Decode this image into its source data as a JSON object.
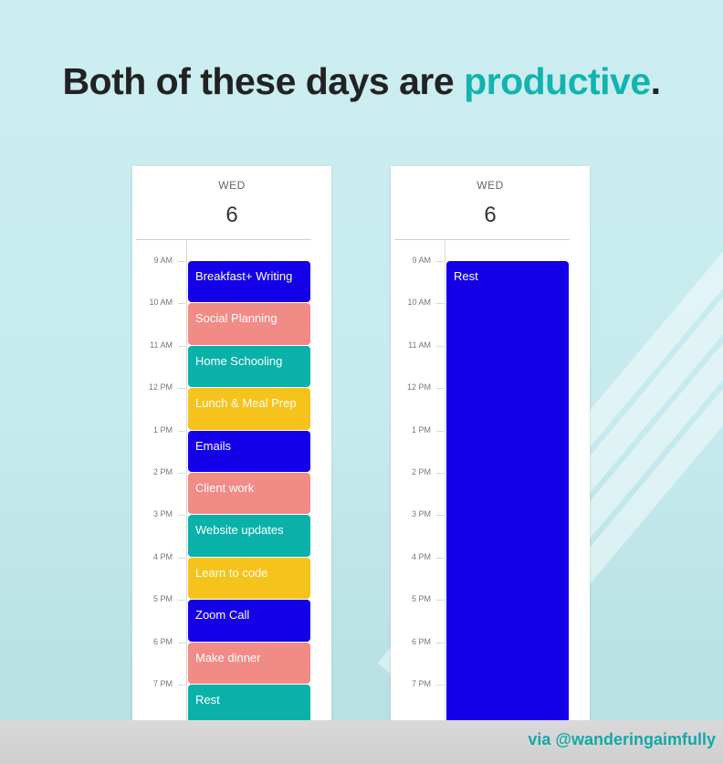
{
  "headline": {
    "lead": "Both of these days are ",
    "accent_word": "productive",
    "end": "."
  },
  "colors": {
    "blue": "#1400e6",
    "salmon": "#f18b86",
    "teal": "#0ab1a8",
    "yellow": "#f6c21c",
    "accent": "#12b3b0",
    "headline": "#222222"
  },
  "hours": [
    "9 AM",
    "10 AM",
    "11 AM",
    "12 PM",
    "1 PM",
    "2 PM",
    "3 PM",
    "4 PM",
    "5 PM",
    "6 PM",
    "7 PM"
  ],
  "calendars": [
    {
      "day_name": "WED",
      "day_number": "6",
      "events": [
        {
          "label": "Breakfast+ Writing",
          "start": 0,
          "length": 1,
          "color": "blue"
        },
        {
          "label": "Social Planning",
          "start": 1,
          "length": 1,
          "color": "salmon"
        },
        {
          "label": "Home Schooling",
          "start": 2,
          "length": 1,
          "color": "teal"
        },
        {
          "label": "Lunch & Meal Prep",
          "start": 3,
          "length": 1,
          "color": "yellow"
        },
        {
          "label": "Emails",
          "start": 4,
          "length": 1,
          "color": "blue"
        },
        {
          "label": "Client work",
          "start": 5,
          "length": 1,
          "color": "salmon"
        },
        {
          "label": "Website updates",
          "start": 6,
          "length": 1,
          "color": "teal"
        },
        {
          "label": "Learn to code",
          "start": 7,
          "length": 1,
          "color": "yellow"
        },
        {
          "label": "Zoom Call",
          "start": 8,
          "length": 1,
          "color": "blue"
        },
        {
          "label": "Make dinner",
          "start": 9,
          "length": 1,
          "color": "salmon"
        },
        {
          "label": "Rest",
          "start": 10,
          "length": 1,
          "color": "teal"
        }
      ]
    },
    {
      "day_name": "WED",
      "day_number": "6",
      "events": [
        {
          "label": "Rest",
          "start": 0,
          "length": 11,
          "color": "blue"
        }
      ]
    }
  ],
  "credit": "via @wanderingaimfully"
}
